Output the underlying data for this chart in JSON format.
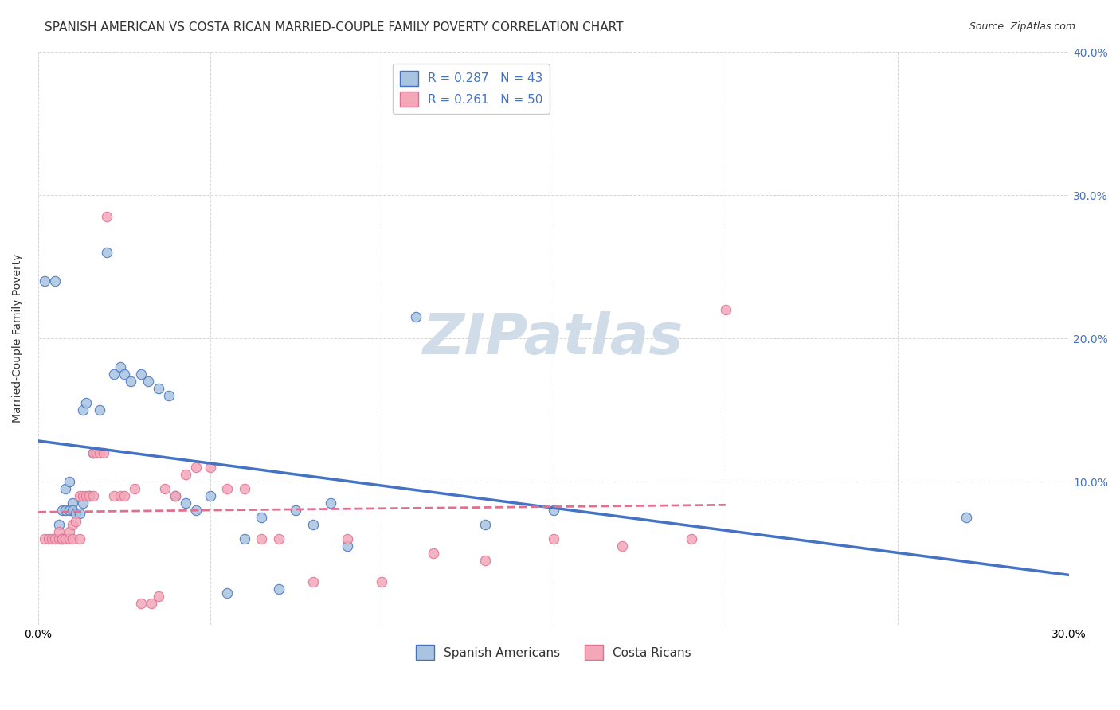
{
  "title": "SPANISH AMERICAN VS COSTA RICAN MARRIED-COUPLE FAMILY POVERTY CORRELATION CHART",
  "source": "Source: ZipAtlas.com",
  "ylabel": "Married-Couple Family Poverty",
  "watermark": "ZIPatlas",
  "xlim": [
    0.0,
    0.3
  ],
  "ylim": [
    0.0,
    0.4
  ],
  "x_ticks": [
    0.0,
    0.05,
    0.1,
    0.15,
    0.2,
    0.25,
    0.3
  ],
  "y_ticks": [
    0.0,
    0.1,
    0.2,
    0.3,
    0.4
  ],
  "y_tick_labels_right": [
    "",
    "10.0%",
    "20.0%",
    "30.0%",
    "40.0%"
  ],
  "spanish_americans": {
    "R": 0.287,
    "N": 43,
    "color": "#a8c4e0",
    "line_color": "#4472c4",
    "x": [
      0.002,
      0.005,
      0.006,
      0.007,
      0.008,
      0.008,
      0.009,
      0.009,
      0.01,
      0.01,
      0.011,
      0.012,
      0.013,
      0.013,
      0.014,
      0.015,
      0.016,
      0.018,
      0.02,
      0.022,
      0.024,
      0.025,
      0.027,
      0.03,
      0.032,
      0.035,
      0.038,
      0.04,
      0.043,
      0.046,
      0.05,
      0.055,
      0.06,
      0.065,
      0.07,
      0.075,
      0.08,
      0.085,
      0.09,
      0.11,
      0.13,
      0.15,
      0.27
    ],
    "y": [
      0.24,
      0.24,
      0.07,
      0.08,
      0.08,
      0.095,
      0.08,
      0.1,
      0.085,
      0.08,
      0.078,
      0.078,
      0.085,
      0.15,
      0.155,
      0.09,
      0.12,
      0.15,
      0.26,
      0.175,
      0.18,
      0.175,
      0.17,
      0.175,
      0.17,
      0.165,
      0.16,
      0.09,
      0.085,
      0.08,
      0.09,
      0.022,
      0.06,
      0.075,
      0.025,
      0.08,
      0.07,
      0.085,
      0.055,
      0.215,
      0.07,
      0.08,
      0.075
    ]
  },
  "costa_ricans": {
    "R": 0.261,
    "N": 50,
    "color": "#f4a7b9",
    "line_color": "#e07090",
    "x": [
      0.002,
      0.003,
      0.004,
      0.005,
      0.006,
      0.006,
      0.007,
      0.007,
      0.008,
      0.009,
      0.009,
      0.01,
      0.01,
      0.011,
      0.012,
      0.012,
      0.013,
      0.014,
      0.015,
      0.016,
      0.016,
      0.017,
      0.018,
      0.019,
      0.02,
      0.022,
      0.024,
      0.025,
      0.028,
      0.03,
      0.033,
      0.035,
      0.037,
      0.04,
      0.043,
      0.046,
      0.05,
      0.055,
      0.06,
      0.065,
      0.07,
      0.08,
      0.09,
      0.1,
      0.115,
      0.13,
      0.15,
      0.17,
      0.19,
      0.2
    ],
    "y": [
      0.06,
      0.06,
      0.06,
      0.06,
      0.06,
      0.065,
      0.06,
      0.06,
      0.06,
      0.06,
      0.065,
      0.06,
      0.07,
      0.072,
      0.06,
      0.09,
      0.09,
      0.09,
      0.09,
      0.09,
      0.12,
      0.12,
      0.12,
      0.12,
      0.285,
      0.09,
      0.09,
      0.09,
      0.095,
      0.015,
      0.015,
      0.02,
      0.095,
      0.09,
      0.105,
      0.11,
      0.11,
      0.095,
      0.095,
      0.06,
      0.06,
      0.03,
      0.06,
      0.03,
      0.05,
      0.045,
      0.06,
      0.055,
      0.06,
      0.22
    ]
  },
  "background_color": "#ffffff",
  "grid_color": "#cccccc",
  "title_fontsize": 11,
  "axis_label_fontsize": 10,
  "tick_fontsize": 10,
  "legend_fontsize": 11,
  "watermark_color": "#d0dce8",
  "watermark_fontsize": 52
}
